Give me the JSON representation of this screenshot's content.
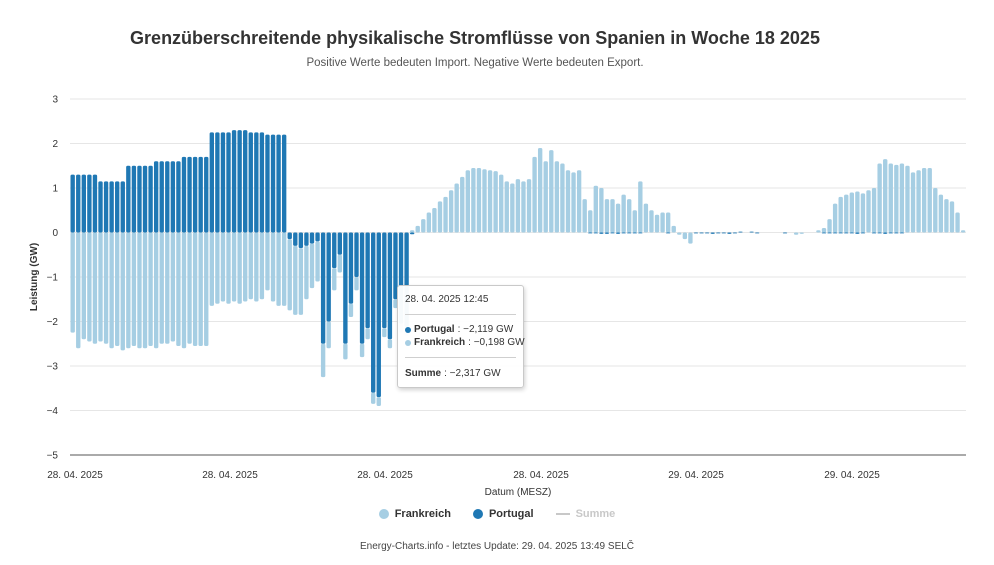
{
  "title": "Grenzüberschreitende physikalische Stromflüsse von Spanien in Woche 18 2025",
  "subtitle": "Positive Werte bedeuten Import. Negative Werte bedeuten Export.",
  "credits": "Energy-Charts.info - letztes Update: 29. 04. 2025 13:49 SELČ",
  "colors": {
    "frankreich": "#a6cee3",
    "portugal": "#1f78b4",
    "summe": "#c8c8c8"
  },
  "legend": {
    "frankreich": "Frankreich",
    "portugal": "Portugal",
    "summe": "Summe"
  },
  "tooltip": {
    "header": "28. 04. 2025 12:45",
    "portugal_label": "Portugal",
    "portugal_value": ": −2,119 GW",
    "frankreich_label": "Frankreich",
    "frankreich_value": ": −0,198 GW",
    "summe_label": "Summe",
    "summe_value": ": −2,317 GW"
  },
  "chart_data": {
    "type": "bar",
    "stacked": true,
    "xlabel": "Datum (MESZ)",
    "ylabel": "Leistung (GW)",
    "ylim": [
      -5,
      3
    ],
    "yticks": [
      "3",
      "2",
      "1",
      "0",
      "−1",
      "−2",
      "−3",
      "−4",
      "−5"
    ],
    "xtick_labels": [
      "28. 04. 2025",
      "28. 04. 2025",
      "28. 04. 2025",
      "28. 04. 2025",
      "29. 04. 2025",
      "29. 04. 2025"
    ],
    "grid": true,
    "legend_position": "bottom-center",
    "series": [
      {
        "name": "Frankreich",
        "values": [
          -2.25,
          -2.6,
          -2.4,
          -2.45,
          -2.5,
          -2.45,
          -2.5,
          -2.6,
          -2.55,
          -2.65,
          -2.6,
          -2.55,
          -2.6,
          -2.6,
          -2.55,
          -2.6,
          -2.5,
          -2.5,
          -2.45,
          -2.55,
          -2.6,
          -2.5,
          -2.55,
          -2.55,
          -2.55,
          -1.65,
          -1.6,
          -1.55,
          -1.6,
          -1.55,
          -1.6,
          -1.55,
          -1.5,
          -1.55,
          -1.5,
          -1.3,
          -1.55,
          -1.65,
          -1.65,
          -1.6,
          -1.55,
          -1.5,
          -1.2,
          -1.0,
          -0.9,
          -0.75,
          -0.6,
          -0.5,
          -0.4,
          -0.35,
          -0.3,
          -0.3,
          -0.3,
          -0.25,
          -0.25,
          -0.2,
          -0.2,
          -0.2,
          -0.2,
          -0.2,
          -0.2,
          0.05,
          0.15,
          0.3,
          0.45,
          0.55,
          0.7,
          0.8,
          0.95,
          1.1,
          1.25,
          1.4,
          1.45,
          1.45,
          1.42,
          1.4,
          1.38,
          1.3,
          1.15,
          1.1,
          1.2,
          1.15,
          1.2,
          1.7,
          1.9,
          1.6,
          1.85,
          1.6,
          1.55,
          1.4,
          1.35,
          1.4,
          0.75,
          0.5,
          1.05,
          1.0,
          0.75,
          0.75,
          0.65,
          0.85,
          0.75,
          0.5,
          1.15,
          0.65,
          0.5,
          0.4,
          0.45,
          0.45,
          0.15,
          -0.05,
          -0.15,
          -0.25,
          0.0,
          0.0,
          0.0,
          0.0,
          0.0,
          0.0,
          0.0,
          0.0,
          0.0,
          0.0,
          0.0,
          0.0,
          0.0,
          0.0,
          0.0,
          0.0,
          0.0,
          0.0,
          -0.05,
          -0.03,
          0.0,
          0.0,
          0.05,
          0.1,
          0.3,
          0.65,
          0.8,
          0.85,
          0.9,
          0.92,
          0.88,
          0.95,
          1.0,
          1.55,
          1.65,
          1.55,
          1.52,
          1.55,
          1.5,
          1.35,
          1.4,
          1.45,
          1.45,
          1.0,
          0.85,
          0.75,
          0.7,
          0.45,
          0.05
        ],
        "legend_label": "Frankreich"
      },
      {
        "name": "Portugal",
        "values": [
          1.3,
          1.3,
          1.3,
          1.3,
          1.3,
          1.15,
          1.15,
          1.15,
          1.15,
          1.15,
          1.5,
          1.5,
          1.5,
          1.5,
          1.5,
          1.6,
          1.6,
          1.6,
          1.6,
          1.6,
          1.7,
          1.7,
          1.7,
          1.7,
          1.7,
          2.25,
          2.25,
          2.25,
          2.25,
          2.3,
          2.3,
          2.3,
          2.25,
          2.25,
          2.25,
          2.2,
          2.2,
          2.2,
          2.2,
          -0.15,
          -0.3,
          -0.35,
          -0.3,
          -0.25,
          -0.2,
          -2.5,
          -2.0,
          -0.8,
          -0.5,
          -2.5,
          -1.6,
          -1.0,
          -2.5,
          -2.15,
          -3.6,
          -3.7,
          -2.15,
          -2.4,
          -1.5,
          -2.05,
          -2.12,
          -0.04,
          0.0,
          0.0,
          0.0,
          0.0,
          0.0,
          0.0,
          0.0,
          0.0,
          0.0,
          0.0,
          0.0,
          0.0,
          0.0,
          0.0,
          0.0,
          0.0,
          0.0,
          0.0,
          0.0,
          0.0,
          0.0,
          0.0,
          0.0,
          0.0,
          0.0,
          0.0,
          0.0,
          0.0,
          0.0,
          0.0,
          0.0,
          -0.02,
          -0.02,
          -0.03,
          -0.03,
          -0.02,
          -0.03,
          -0.02,
          -0.02,
          -0.02,
          -0.02,
          0.0,
          0.0,
          0.0,
          0.0,
          -0.02,
          0.0,
          0.0,
          0.0,
          0.0,
          -0.02,
          -0.02,
          -0.02,
          -0.03,
          -0.02,
          -0.02,
          -0.03,
          -0.02,
          0.02,
          0.0,
          0.02,
          -0.02,
          0.0,
          0.0,
          0.0,
          0.0,
          -0.02,
          0.0,
          0.0,
          0.0,
          0.0,
          0.0,
          0.0,
          -0.02,
          -0.02,
          -0.02,
          -0.02,
          -0.02,
          -0.02,
          -0.03,
          -0.02,
          0.0,
          -0.02,
          -0.02,
          -0.03,
          -0.02,
          -0.02,
          -0.02,
          0.0,
          0.0,
          0.0,
          0.0,
          0.0,
          0.0,
          0.0,
          0.0,
          0.0,
          0.0
        ]
      }
    ]
  }
}
